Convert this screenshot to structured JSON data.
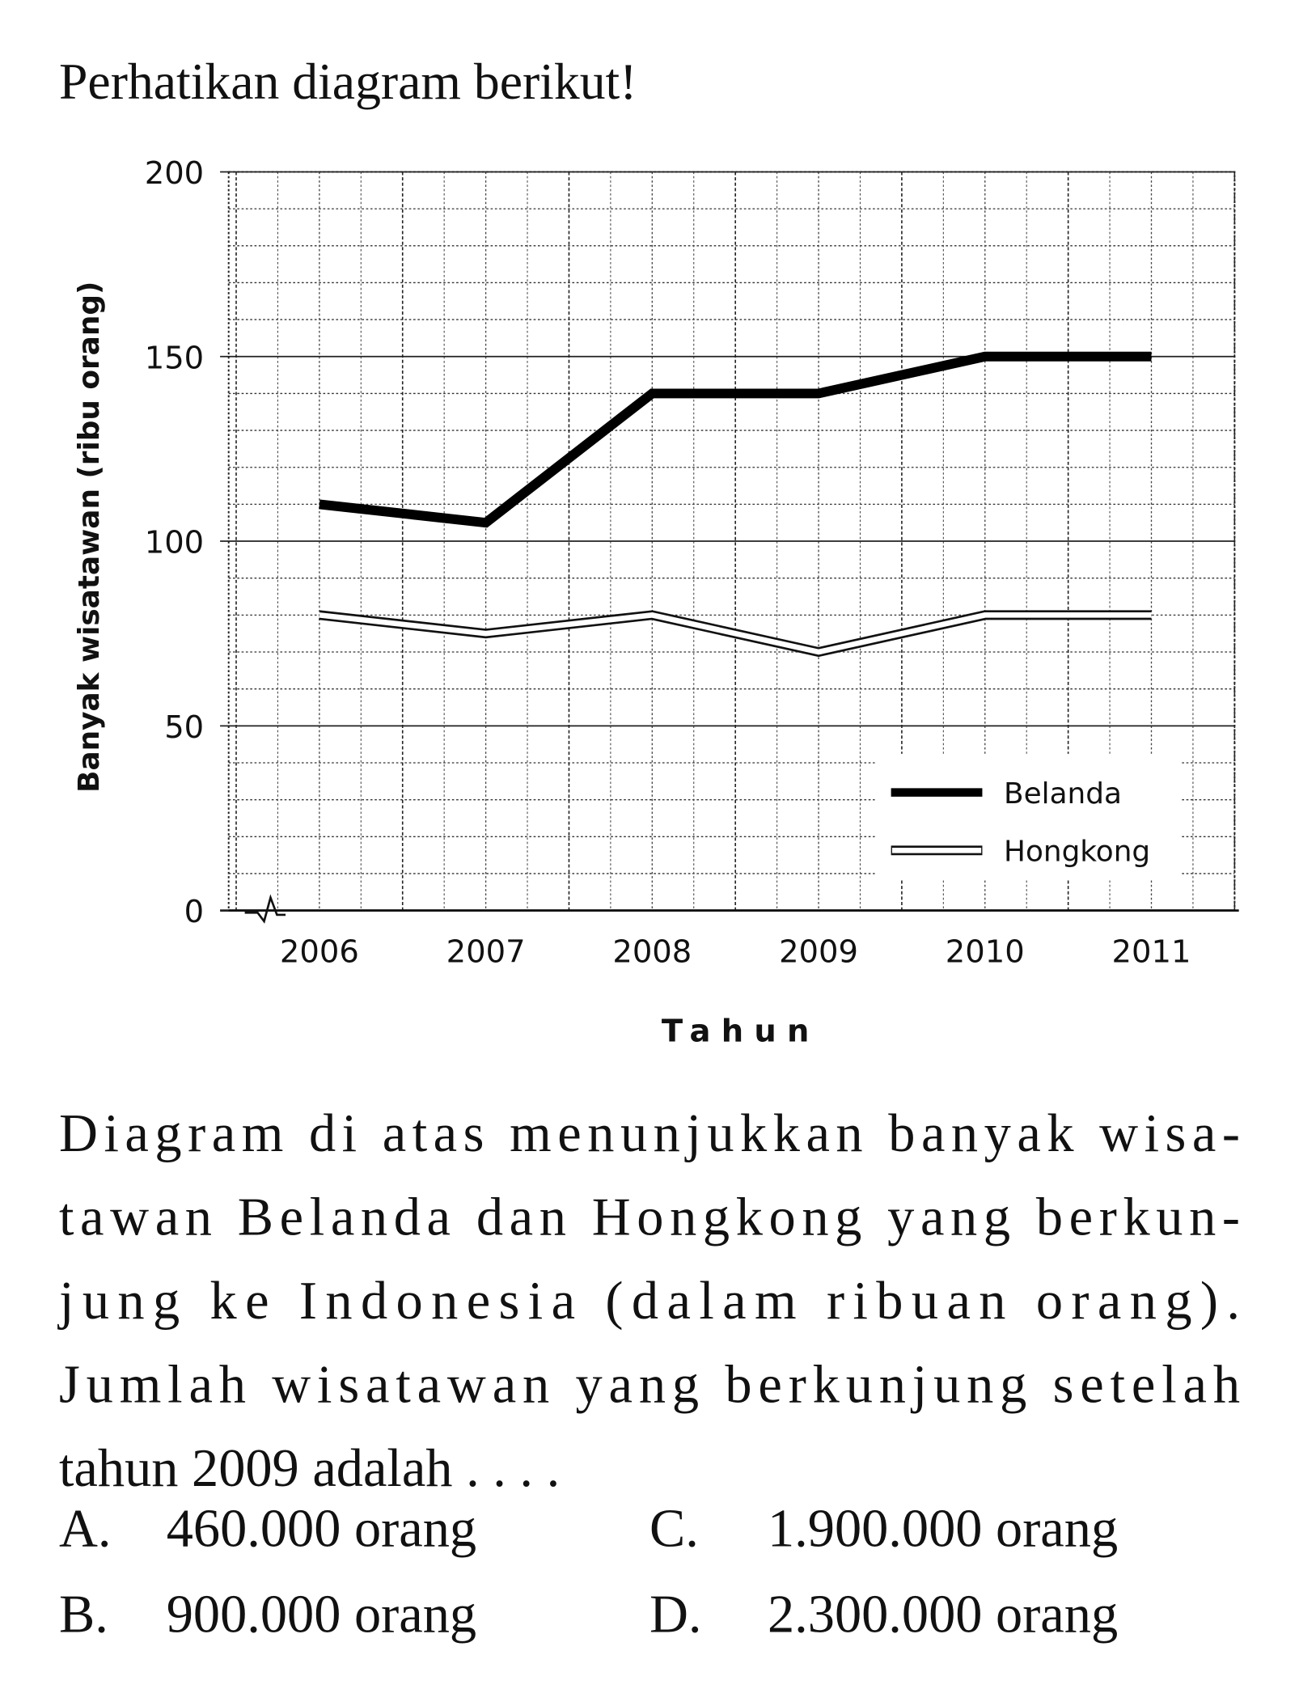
{
  "heading": "Perhatikan diagram berikut!",
  "chart_data": {
    "type": "line",
    "y_label": "Banyak wisatawan (ribu orang)",
    "x_label": "Tahun",
    "categories": [
      "2006",
      "2007",
      "2008",
      "2009",
      "2010",
      "2011"
    ],
    "series": [
      {
        "name": "Belanda",
        "color": "#000000",
        "values": [
          110,
          105,
          140,
          140,
          150,
          150
        ]
      },
      {
        "name": "Hongkong",
        "color": "#ffffff",
        "values": [
          80,
          75,
          80,
          70,
          80,
          80
        ]
      }
    ],
    "ylim": [
      0,
      200
    ],
    "yticks": [
      0,
      50,
      100,
      150,
      200
    ],
    "grid": true,
    "legend": "lower right"
  },
  "question": {
    "lines": [
      "Diagram di atas menunjukkan banyak wisa-",
      "tawan Belanda dan Hongkong yang berkun-",
      "jung ke Indonesia (dalam ribuan orang).",
      "Jumlah wisatawan yang berkunjung setelah",
      "tahun 2009 adalah . . . ."
    ],
    "options": [
      {
        "letter": "A.",
        "text": "460.000 orang"
      },
      {
        "letter": "B.",
        "text": "900.000 orang"
      },
      {
        "letter": "C.",
        "text": "1.900.000 orang"
      },
      {
        "letter": "D.",
        "text": "2.300.000 orang"
      }
    ]
  }
}
